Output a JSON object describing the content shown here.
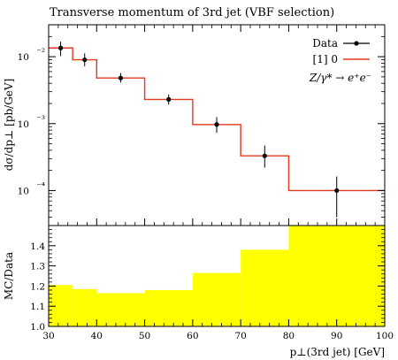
{
  "chart_data": [
    {
      "type": "line",
      "title": "Transverse momentum of 3rd jet (VBF selection)",
      "ylabel": "dσ/dp⊥ [pb/GeV]",
      "yscale": "log",
      "xlim": [
        30,
        100
      ],
      "ylim": [
        3e-05,
        0.03
      ],
      "y_ticks": [
        {
          "value": 0.0001,
          "label": "10⁻⁴"
        },
        {
          "value": 0.001,
          "label": "10⁻³"
        },
        {
          "value": 0.01,
          "label": "10⁻²"
        }
      ],
      "legend": {
        "position": "top-right",
        "entries": [
          "Data",
          "[1] 0"
        ],
        "annotation": "Z/γ* → e⁺e⁻"
      },
      "series": [
        {
          "name": "Data",
          "style": "points-with-errorbars",
          "color": "#000000",
          "x": [
            32.5,
            37.5,
            45,
            55,
            65,
            75,
            90
          ],
          "y": [
            0.0135,
            0.009,
            0.0048,
            0.0023,
            0.00097,
            0.00033,
            0.0001
          ],
          "yerr_low": [
            0.0102,
            0.0072,
            0.0041,
            0.00193,
            0.00073,
            0.00022,
            4e-05
          ],
          "yerr_high": [
            0.0168,
            0.0112,
            0.0057,
            0.00272,
            0.00125,
            0.00047,
            0.000162
          ]
        },
        {
          "name": "[1] 0",
          "style": "step",
          "color": "#e5391d",
          "bin_edges": [
            30,
            35,
            40,
            50,
            60,
            70,
            80,
            100
          ],
          "values": [
            0.0135,
            0.009,
            0.0048,
            0.0023,
            0.00097,
            0.00033,
            0.0001
          ]
        }
      ]
    },
    {
      "type": "area",
      "ylabel": "MC/Data",
      "xlabel": "p⊥(3rd jet) [GeV]",
      "xlim": [
        30,
        100
      ],
      "ylim": [
        1.0,
        1.5
      ],
      "x_ticks": [
        30,
        40,
        50,
        60,
        70,
        80,
        90,
        100
      ],
      "y_ticks": [
        1.0,
        1.1,
        1.2,
        1.3,
        1.4
      ],
      "series": [
        {
          "name": "[1] 0",
          "color": "#ffff00",
          "bin_edges": [
            30,
            35,
            40,
            50,
            60,
            70,
            80,
            100
          ],
          "values": [
            1.205,
            1.185,
            1.165,
            1.18,
            1.265,
            1.38,
            1.5
          ]
        }
      ]
    }
  ]
}
